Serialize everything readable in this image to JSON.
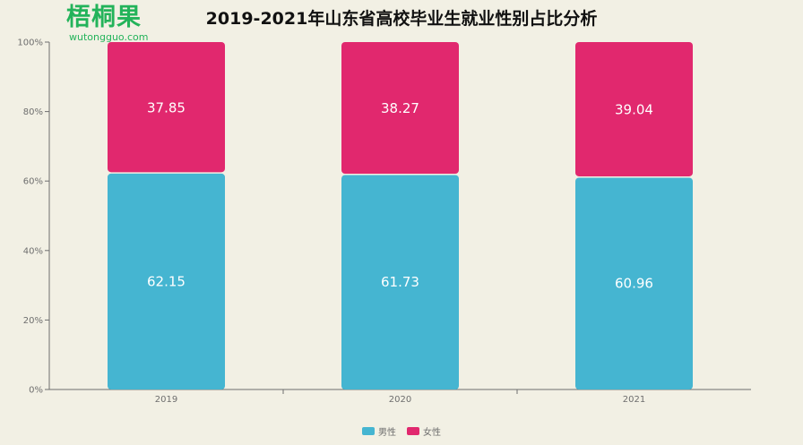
{
  "logo": {
    "cn": "梧桐果",
    "en": "wutongguo.com"
  },
  "chart_data": {
    "type": "bar",
    "stacked": true,
    "title": "2019-2021年山东省高校毕业生就业性别占比分析",
    "categories": [
      "2019",
      "2020",
      "2021"
    ],
    "series": [
      {
        "name": "男性",
        "values": [
          62.15,
          61.73,
          60.96
        ],
        "color": "#45b5d1"
      },
      {
        "name": "女性",
        "values": [
          37.85,
          38.27,
          39.04
        ],
        "color": "#e1286e"
      }
    ],
    "ylim": [
      0,
      100
    ],
    "yticks": [
      "0%",
      "20%",
      "40%",
      "60%",
      "80%",
      "100%"
    ],
    "legend_position": "bottom-center",
    "grid": false
  }
}
